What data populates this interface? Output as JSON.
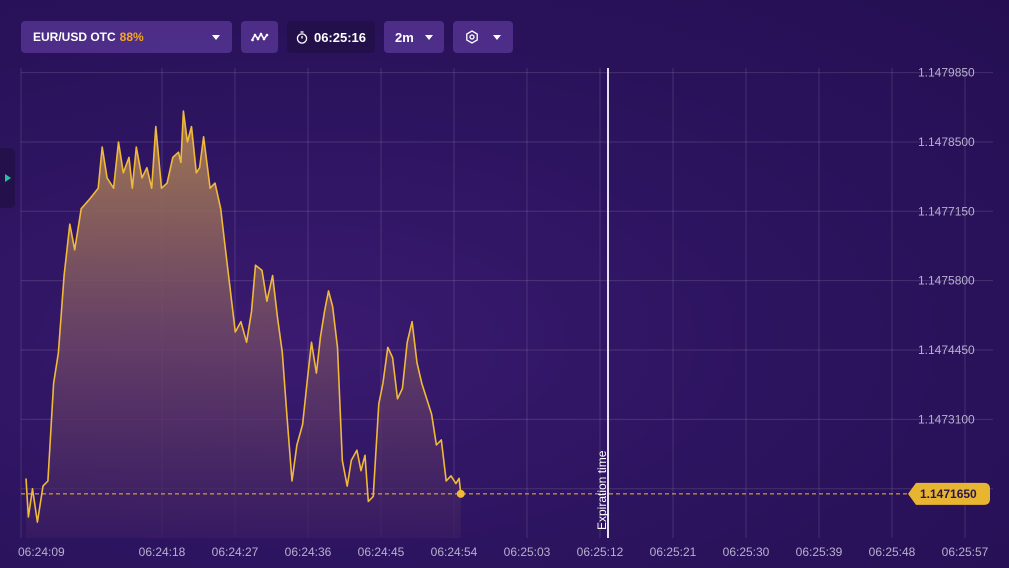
{
  "toolbar": {
    "asset": "EUR/USD OTC",
    "payout": "88%",
    "timer": "06:25:16",
    "timeframe": "2m",
    "icons": {
      "chart_type": "waveform-icon",
      "timer": "stopwatch-icon",
      "settings": "gear-icon",
      "dropdown": "caret-down-icon",
      "side_panel": "triangle-right-icon"
    }
  },
  "colors": {
    "line": "#f0b93a",
    "price_tag_bg": "#e8b530",
    "expiration_line": "#e6e0f2",
    "background": "#2b1357",
    "payout": "#f5a623",
    "side_tab_arrow": "#22c3a0"
  },
  "chart_data": {
    "type": "area",
    "title": "",
    "xlabel": "",
    "ylabel": "",
    "ylim": [
      1.147079,
      1.147994
    ],
    "x_ticks": [
      "06:24:09",
      "06:24:18",
      "06:24:27",
      "06:24:36",
      "06:24:45",
      "06:24:54",
      "06:25:03",
      "06:25:12",
      "06:25:21",
      "06:25:30",
      "06:25:39",
      "06:25:48",
      "06:25:57"
    ],
    "y_ticks": [
      "1.1479850",
      "1.1478500",
      "1.1477150",
      "1.1475800",
      "1.1474450",
      "1.1473100",
      "1.1471750"
    ],
    "current_price": "1.1471650",
    "current_price_value": 1.147165,
    "expiration_label": "Expiration time",
    "expiration_time": "06:25:21",
    "series": [
      {
        "values": [
          [
            0.0,
            1.147195
          ],
          [
            0.3,
            1.14712
          ],
          [
            0.8,
            1.147175
          ],
          [
            1.4,
            1.14711
          ],
          [
            2.1,
            1.14718
          ],
          [
            2.7,
            1.14719
          ],
          [
            3.4,
            1.14738
          ],
          [
            4.0,
            1.14744
          ],
          [
            4.7,
            1.14759
          ],
          [
            5.4,
            1.14769
          ],
          [
            6.0,
            1.14764
          ],
          [
            6.8,
            1.14772
          ],
          [
            7.9,
            1.14774
          ],
          [
            8.9,
            1.14776
          ],
          [
            9.4,
            1.14784
          ],
          [
            10.0,
            1.14778
          ],
          [
            10.8,
            1.14776
          ],
          [
            11.4,
            1.14785
          ],
          [
            12.0,
            1.14779
          ],
          [
            12.7,
            1.14782
          ],
          [
            13.1,
            1.14776
          ],
          [
            13.6,
            1.14784
          ],
          [
            14.3,
            1.14778
          ],
          [
            14.9,
            1.1478
          ],
          [
            15.5,
            1.14776
          ],
          [
            16.0,
            1.14788
          ],
          [
            16.7,
            1.14776
          ],
          [
            17.4,
            1.14777
          ],
          [
            18.1,
            1.14782
          ],
          [
            18.8,
            1.14783
          ],
          [
            19.1,
            1.14781
          ],
          [
            19.4,
            1.14791
          ],
          [
            19.9,
            1.14785
          ],
          [
            20.4,
            1.14788
          ],
          [
            21.0,
            1.14779
          ],
          [
            21.4,
            1.1478
          ],
          [
            21.9,
            1.14786
          ],
          [
            22.7,
            1.14776
          ],
          [
            23.3,
            1.14777
          ],
          [
            24.0,
            1.14772
          ],
          [
            24.6,
            1.14764
          ],
          [
            25.2,
            1.14756
          ],
          [
            25.8,
            1.14748
          ],
          [
            26.5,
            1.1475
          ],
          [
            27.2,
            1.14746
          ],
          [
            27.8,
            1.14752
          ],
          [
            28.3,
            1.14761
          ],
          [
            29.1,
            1.1476
          ],
          [
            29.7,
            1.14754
          ],
          [
            30.4,
            1.14759
          ],
          [
            31.0,
            1.14751
          ],
          [
            31.6,
            1.14744
          ],
          [
            32.2,
            1.14731
          ],
          [
            32.8,
            1.14719
          ],
          [
            33.4,
            1.14726
          ],
          [
            34.1,
            1.1473
          ],
          [
            34.7,
            1.14739
          ],
          [
            35.2,
            1.14746
          ],
          [
            35.8,
            1.1474
          ],
          [
            36.3,
            1.14747
          ],
          [
            36.8,
            1.14752
          ],
          [
            37.3,
            1.14756
          ],
          [
            37.8,
            1.14753
          ],
          [
            38.4,
            1.14745
          ],
          [
            39.0,
            1.14723
          ],
          [
            39.6,
            1.14718
          ],
          [
            40.1,
            1.14723
          ],
          [
            40.8,
            1.14725
          ],
          [
            41.3,
            1.14721
          ],
          [
            41.8,
            1.14724
          ],
          [
            42.2,
            1.14715
          ],
          [
            42.8,
            1.14716
          ],
          [
            43.5,
            1.14734
          ],
          [
            44.0,
            1.14738
          ],
          [
            44.6,
            1.14745
          ],
          [
            45.2,
            1.14743
          ],
          [
            45.8,
            1.14735
          ],
          [
            46.4,
            1.14737
          ],
          [
            47.0,
            1.14746
          ],
          [
            47.6,
            1.1475
          ],
          [
            48.2,
            1.14742
          ],
          [
            48.8,
            1.14738
          ],
          [
            49.4,
            1.14735
          ],
          [
            50.0,
            1.14732
          ],
          [
            50.6,
            1.14726
          ],
          [
            51.2,
            1.14727
          ],
          [
            51.8,
            1.14719
          ],
          [
            52.4,
            1.1472
          ],
          [
            53.0,
            1.147185
          ],
          [
            53.4,
            1.147195
          ],
          [
            53.6,
            1.147165
          ]
        ]
      }
    ]
  }
}
